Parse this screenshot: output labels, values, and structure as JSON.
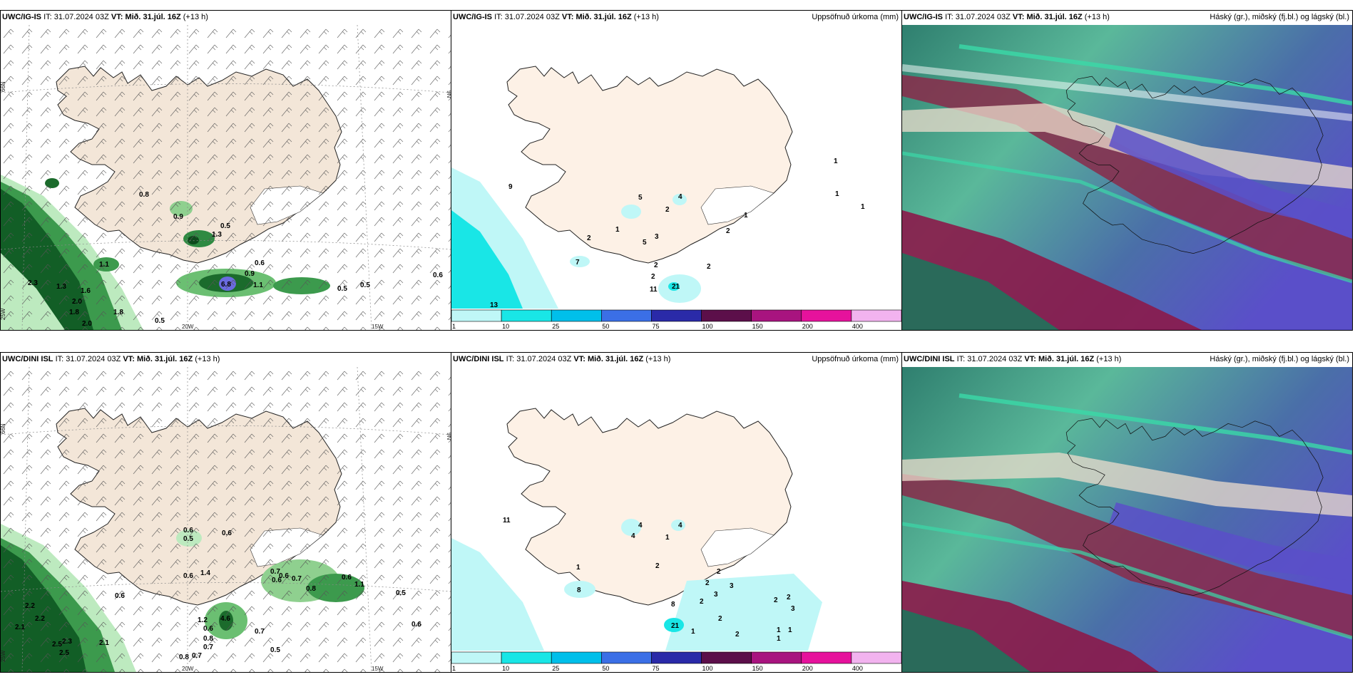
{
  "rows": [
    {
      "model": "UWC/IG-IS",
      "it_label": "IT:",
      "init_time": "31.07.2024 03Z",
      "vt_label": "VT:",
      "valid_time": "Mið. 31.júl. 16Z",
      "lead": "(+13 h)",
      "precip_labels": [
        "0.8",
        "0.9",
        "0.5",
        "1.3",
        "1.1",
        "0.6",
        "0.9",
        "6.8",
        "1.1",
        "0.5",
        "0.5",
        "0.6",
        "2.3",
        "1.3",
        "1.6",
        "2.0",
        "1.8",
        "1.8",
        "2.0",
        "0.5"
      ],
      "accum_labels": [
        "9",
        "5",
        "4",
        "2",
        "1",
        "3",
        "2",
        "2",
        "5",
        "7",
        "2",
        "2",
        "2",
        "1",
        "1",
        "1",
        "13",
        "21",
        "11",
        "1"
      ]
    },
    {
      "model": "UWC/DINI ISL",
      "it_label": "IT:",
      "init_time": "31.07.2024 03Z",
      "vt_label": "VT:",
      "valid_time": "Mið. 31.júl. 16Z",
      "lead": "(+13 h)",
      "precip_labels": [
        "0.6",
        "0.5",
        "0.6",
        "0.6",
        "1.4",
        "0.7",
        "0.6",
        "0.6",
        "0.7",
        "0.8",
        "0.6",
        "1.1",
        "0.5",
        "0.6",
        "4.6",
        "1.2",
        "0.6",
        "0.8",
        "0.7",
        "0.7",
        "0.5",
        "0.6",
        "2.2",
        "2.2",
        "2.1",
        "2.5",
        "2.3",
        "2.5",
        "2.1",
        "0.8",
        "0.7"
      ],
      "accum_labels": [
        "11",
        "4",
        "4",
        "4",
        "2",
        "1",
        "1",
        "8",
        "2",
        "2",
        "3",
        "3",
        "2",
        "2",
        "2",
        "2",
        "1",
        "1",
        "1",
        "1",
        "21",
        "8",
        "2",
        "3"
      ]
    }
  ],
  "precip_title": "Uppsöfnuð úrkoma (mm)",
  "cloud_title": "Háský (gr.), miðský (fj.bl.) og lágský (bl.)",
  "axis_labels": {
    "lat66": "66N",
    "lon25": "25W",
    "lon20": "20W",
    "lon15": "15W",
    "lon9": "9N"
  },
  "colorbar": {
    "ticks": [
      "1",
      "10",
      "25",
      "50",
      "75",
      "100",
      "150",
      "200",
      "400"
    ],
    "colors": [
      "#bff7f7",
      "#19e6e6",
      "#00bfea",
      "#3b6fe6",
      "#2a2aa8",
      "#5c0f4a",
      "#a8147f",
      "#e6129c",
      "#f2b3ef"
    ]
  }
}
